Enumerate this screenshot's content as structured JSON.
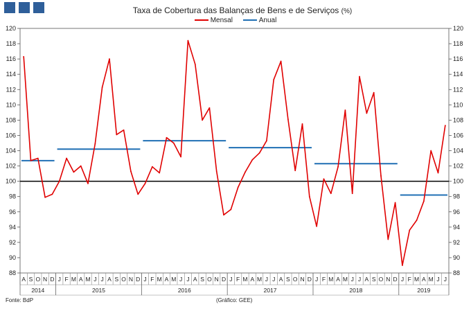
{
  "header": {
    "title": "Taxa de Cobertura das Balanças de Bens e de Serviços",
    "unit": "(%)"
  },
  "footer": {
    "source": "Fonte: BdP",
    "credit": "(Gráfico: GEE)"
  },
  "colors": {
    "monthly": "#e00000",
    "annual": "#1f6fb4",
    "reference": "#000000",
    "logo": "#2f5f9a"
  },
  "chart_data": {
    "type": "line",
    "title": "Taxa de Cobertura das Balanças de Bens e de Serviços (%)",
    "ylim": [
      88,
      120
    ],
    "yticks": [
      88,
      90,
      92,
      94,
      96,
      98,
      100,
      102,
      104,
      106,
      108,
      110,
      112,
      114,
      116,
      118,
      120
    ],
    "grid": false,
    "legend_position": "top-center",
    "reference_line": 100,
    "months": [
      "A",
      "S",
      "O",
      "N",
      "D",
      "J",
      "F",
      "M",
      "A",
      "M",
      "J",
      "J",
      "A",
      "S",
      "O",
      "N",
      "D",
      "J",
      "F",
      "M",
      "A",
      "M",
      "J",
      "J",
      "A",
      "S",
      "O",
      "N",
      "D",
      "J",
      "F",
      "M",
      "A",
      "M",
      "J",
      "J",
      "A",
      "S",
      "O",
      "N",
      "D",
      "J",
      "F",
      "M",
      "A",
      "M",
      "J",
      "J",
      "A",
      "S",
      "O",
      "N",
      "D",
      "J",
      "F",
      "M",
      "A",
      "M",
      "J",
      "J"
    ],
    "years": [
      {
        "label": "2014",
        "start": 0,
        "count": 5
      },
      {
        "label": "2015",
        "start": 5,
        "count": 12
      },
      {
        "label": "2016",
        "start": 17,
        "count": 12
      },
      {
        "label": "2017",
        "start": 29,
        "count": 12
      },
      {
        "label": "2018",
        "start": 41,
        "count": 12
      },
      {
        "label": "2019",
        "start": 53,
        "count": 7
      }
    ],
    "series": [
      {
        "name": "Mensal",
        "values": [
          116.3,
          102.7,
          103.0,
          97.9,
          98.3,
          100.0,
          103.0,
          101.2,
          102.0,
          99.7,
          104.9,
          112.3,
          116.0,
          106.1,
          106.7,
          101.3,
          98.3,
          99.7,
          101.9,
          101.1,
          105.7,
          105.0,
          103.2,
          118.4,
          115.3,
          108.0,
          109.6,
          101.3,
          95.6,
          96.3,
          99.2,
          101.2,
          102.8,
          103.7,
          105.3,
          113.3,
          115.7,
          108.1,
          101.4,
          107.5,
          98.0,
          94.1,
          100.3,
          98.4,
          101.9,
          109.3,
          98.4,
          113.7,
          108.9,
          111.6,
          100.7,
          92.4,
          97.2,
          89.0,
          93.6,
          94.9,
          97.4,
          104.0,
          101.1,
          107.3
        ]
      },
      {
        "name": "Anual",
        "segments": [
          {
            "from": 0,
            "to": 4,
            "value": 102.7
          },
          {
            "from": 5,
            "to": 16,
            "value": 104.2
          },
          {
            "from": 17,
            "to": 28,
            "value": 105.3
          },
          {
            "from": 29,
            "to": 40,
            "value": 104.4
          },
          {
            "from": 41,
            "to": 52,
            "value": 102.3
          },
          {
            "from": 53,
            "to": 59,
            "value": 98.2
          }
        ]
      }
    ]
  }
}
